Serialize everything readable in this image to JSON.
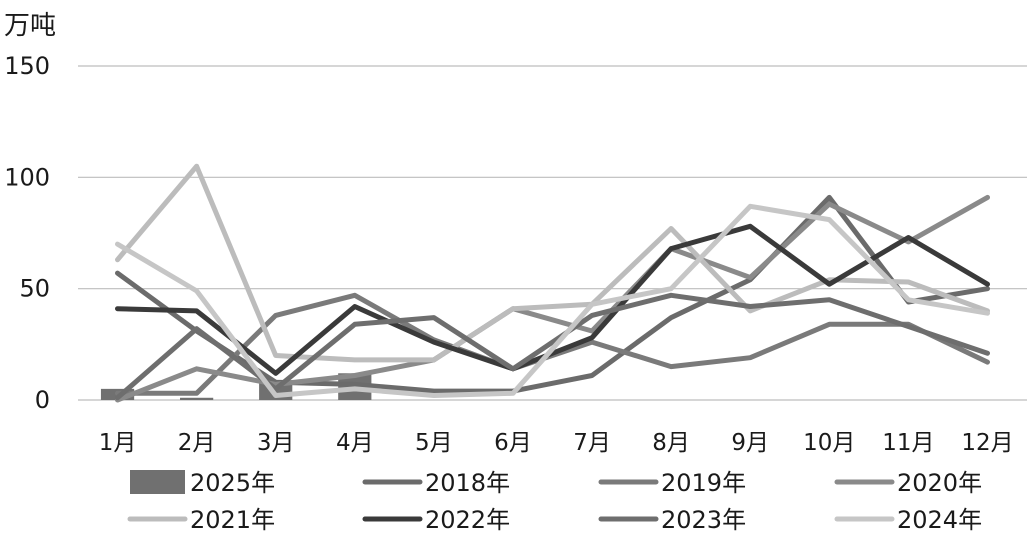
{
  "chart_data": {
    "type": "line",
    "unit_label": "万吨",
    "categories": [
      "1月",
      "2月",
      "3月",
      "4月",
      "5月",
      "6月",
      "7月",
      "8月",
      "9月",
      "10月",
      "11月",
      "12月"
    ],
    "ylim": [
      0,
      150
    ],
    "yticks": [
      "0",
      "50",
      "100",
      "150"
    ],
    "grid": true,
    "legend_position": "bottom",
    "series": [
      {
        "name": "2025年",
        "type": "bar",
        "color": "#707070",
        "values": [
          5,
          1,
          8,
          12,
          null,
          null,
          null,
          null,
          null,
          null,
          null,
          null
        ]
      },
      {
        "name": "2018年",
        "type": "line",
        "color": "#6b6b6b",
        "values": [
          57,
          31,
          8,
          7,
          4,
          4,
          11,
          37,
          54,
          91,
          44,
          50
        ]
      },
      {
        "name": "2019年",
        "type": "line",
        "color": "#7a7a7a",
        "values": [
          3,
          3,
          38,
          47,
          27,
          14,
          26,
          15,
          19,
          34,
          34,
          17
        ]
      },
      {
        "name": "2020年",
        "type": "line",
        "color": "#8a8a8a",
        "values": [
          0,
          14,
          7,
          11,
          18,
          41,
          31,
          68,
          55,
          88,
          71,
          91
        ]
      },
      {
        "name": "2021年",
        "type": "line",
        "color": "#bcbcbc",
        "values": [
          63,
          105,
          20,
          18,
          18,
          41,
          43,
          77,
          40,
          54,
          53,
          40
        ]
      },
      {
        "name": "2022年",
        "type": "line",
        "color": "#3a3a3a",
        "values": [
          41,
          40,
          12,
          42,
          26,
          14,
          28,
          68,
          78,
          52,
          73,
          52
        ]
      },
      {
        "name": "2023年",
        "type": "line",
        "color": "#6e6e6e",
        "values": [
          1,
          32,
          5,
          34,
          37,
          14,
          38,
          47,
          42,
          45,
          33,
          21
        ]
      },
      {
        "name": "2024年",
        "type": "line",
        "color": "#c6c6c6",
        "values": [
          70,
          49,
          2,
          5,
          2,
          3,
          43,
          50,
          87,
          81,
          45,
          39
        ]
      }
    ]
  }
}
